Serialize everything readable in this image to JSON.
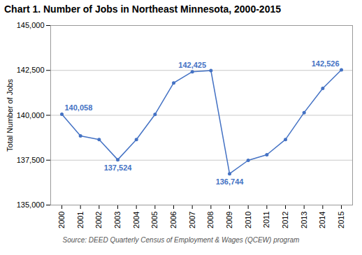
{
  "chart_data": {
    "type": "line",
    "title": "Chart 1. Number of Jobs in Northeast Minnesota, 2000-2015",
    "ylabel": "Total Number of Jobs",
    "source": "Source: DEED Quarterly Census of Employment & Wages (QCEW) program",
    "x": [
      2000,
      2001,
      2002,
      2003,
      2004,
      2005,
      2006,
      2007,
      2008,
      2009,
      2010,
      2011,
      2012,
      2013,
      2014,
      2015
    ],
    "values": [
      140058,
      138850,
      138650,
      137524,
      138650,
      140050,
      141800,
      142425,
      142490,
      136744,
      137490,
      137800,
      138650,
      140150,
      141500,
      142526
    ],
    "color": "#4472C4",
    "marker": "circle",
    "xlim": [
      1999.4,
      2015.6
    ],
    "xticks": [
      2000,
      2001,
      2002,
      2003,
      2004,
      2005,
      2006,
      2007,
      2008,
      2009,
      2010,
      2011,
      2012,
      2013,
      2014,
      2015
    ],
    "ylim": [
      135000,
      145000
    ],
    "yticks": [
      {
        "value": 135000,
        "label": "135,000"
      },
      {
        "value": 137500,
        "label": "137,500"
      },
      {
        "value": 140000,
        "label": "140,000"
      },
      {
        "value": 142500,
        "label": "142,500"
      },
      {
        "value": 145000,
        "label": "145,000"
      }
    ],
    "grid": true,
    "annotations": [
      {
        "x": 2000,
        "y": 140058,
        "text": "140,058"
      },
      {
        "x": 2003,
        "y": 137524,
        "text": "137,524"
      },
      {
        "x": 2007,
        "y": 142425,
        "text": "142,425"
      },
      {
        "x": 2009,
        "y": 136744,
        "text": "136,744"
      },
      {
        "x": 2015,
        "y": 142526,
        "text": "142,526"
      }
    ]
  }
}
